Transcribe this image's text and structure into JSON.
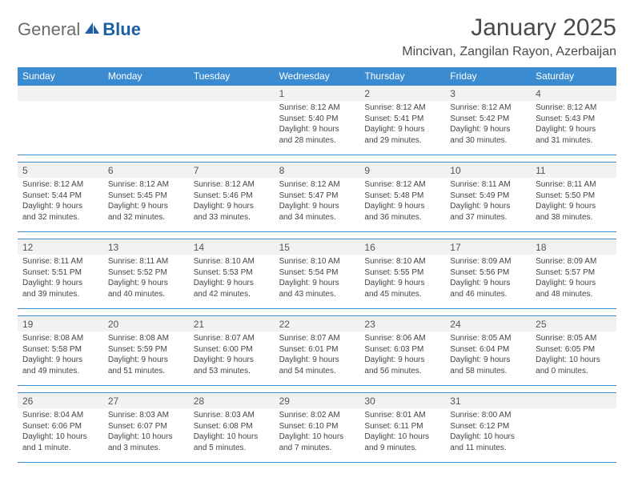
{
  "colors": {
    "header_bg": "#3b8bd0",
    "header_text": "#ffffff",
    "week_border": "#3b8bd0",
    "logo_gray": "#6b6b6b",
    "logo_blue": "#1e5fa3",
    "daynum_bg": "#f2f2f2",
    "text": "#444444",
    "title": "#4a4a4a"
  },
  "logo": {
    "word1": "General",
    "word2": "Blue"
  },
  "title": "January 2025",
  "location": "Mincivan, Zangilan Rayon, Azerbaijan",
  "dow": [
    "Sunday",
    "Monday",
    "Tuesday",
    "Wednesday",
    "Thursday",
    "Friday",
    "Saturday"
  ],
  "weeks": [
    [
      null,
      null,
      null,
      {
        "n": "1",
        "sr": "8:12 AM",
        "ss": "5:40 PM",
        "dl": "9 hours and 28 minutes."
      },
      {
        "n": "2",
        "sr": "8:12 AM",
        "ss": "5:41 PM",
        "dl": "9 hours and 29 minutes."
      },
      {
        "n": "3",
        "sr": "8:12 AM",
        "ss": "5:42 PM",
        "dl": "9 hours and 30 minutes."
      },
      {
        "n": "4",
        "sr": "8:12 AM",
        "ss": "5:43 PM",
        "dl": "9 hours and 31 minutes."
      }
    ],
    [
      {
        "n": "5",
        "sr": "8:12 AM",
        "ss": "5:44 PM",
        "dl": "9 hours and 32 minutes."
      },
      {
        "n": "6",
        "sr": "8:12 AM",
        "ss": "5:45 PM",
        "dl": "9 hours and 32 minutes."
      },
      {
        "n": "7",
        "sr": "8:12 AM",
        "ss": "5:46 PM",
        "dl": "9 hours and 33 minutes."
      },
      {
        "n": "8",
        "sr": "8:12 AM",
        "ss": "5:47 PM",
        "dl": "9 hours and 34 minutes."
      },
      {
        "n": "9",
        "sr": "8:12 AM",
        "ss": "5:48 PM",
        "dl": "9 hours and 36 minutes."
      },
      {
        "n": "10",
        "sr": "8:11 AM",
        "ss": "5:49 PM",
        "dl": "9 hours and 37 minutes."
      },
      {
        "n": "11",
        "sr": "8:11 AM",
        "ss": "5:50 PM",
        "dl": "9 hours and 38 minutes."
      }
    ],
    [
      {
        "n": "12",
        "sr": "8:11 AM",
        "ss": "5:51 PM",
        "dl": "9 hours and 39 minutes."
      },
      {
        "n": "13",
        "sr": "8:11 AM",
        "ss": "5:52 PM",
        "dl": "9 hours and 40 minutes."
      },
      {
        "n": "14",
        "sr": "8:10 AM",
        "ss": "5:53 PM",
        "dl": "9 hours and 42 minutes."
      },
      {
        "n": "15",
        "sr": "8:10 AM",
        "ss": "5:54 PM",
        "dl": "9 hours and 43 minutes."
      },
      {
        "n": "16",
        "sr": "8:10 AM",
        "ss": "5:55 PM",
        "dl": "9 hours and 45 minutes."
      },
      {
        "n": "17",
        "sr": "8:09 AM",
        "ss": "5:56 PM",
        "dl": "9 hours and 46 minutes."
      },
      {
        "n": "18",
        "sr": "8:09 AM",
        "ss": "5:57 PM",
        "dl": "9 hours and 48 minutes."
      }
    ],
    [
      {
        "n": "19",
        "sr": "8:08 AM",
        "ss": "5:58 PM",
        "dl": "9 hours and 49 minutes."
      },
      {
        "n": "20",
        "sr": "8:08 AM",
        "ss": "5:59 PM",
        "dl": "9 hours and 51 minutes."
      },
      {
        "n": "21",
        "sr": "8:07 AM",
        "ss": "6:00 PM",
        "dl": "9 hours and 53 minutes."
      },
      {
        "n": "22",
        "sr": "8:07 AM",
        "ss": "6:01 PM",
        "dl": "9 hours and 54 minutes."
      },
      {
        "n": "23",
        "sr": "8:06 AM",
        "ss": "6:03 PM",
        "dl": "9 hours and 56 minutes."
      },
      {
        "n": "24",
        "sr": "8:05 AM",
        "ss": "6:04 PM",
        "dl": "9 hours and 58 minutes."
      },
      {
        "n": "25",
        "sr": "8:05 AM",
        "ss": "6:05 PM",
        "dl": "10 hours and 0 minutes."
      }
    ],
    [
      {
        "n": "26",
        "sr": "8:04 AM",
        "ss": "6:06 PM",
        "dl": "10 hours and 1 minute."
      },
      {
        "n": "27",
        "sr": "8:03 AM",
        "ss": "6:07 PM",
        "dl": "10 hours and 3 minutes."
      },
      {
        "n": "28",
        "sr": "8:03 AM",
        "ss": "6:08 PM",
        "dl": "10 hours and 5 minutes."
      },
      {
        "n": "29",
        "sr": "8:02 AM",
        "ss": "6:10 PM",
        "dl": "10 hours and 7 minutes."
      },
      {
        "n": "30",
        "sr": "8:01 AM",
        "ss": "6:11 PM",
        "dl": "10 hours and 9 minutes."
      },
      {
        "n": "31",
        "sr": "8:00 AM",
        "ss": "6:12 PM",
        "dl": "10 hours and 11 minutes."
      },
      null
    ]
  ],
  "labels": {
    "sunrise": "Sunrise:",
    "sunset": "Sunset:",
    "daylight": "Daylight:"
  }
}
